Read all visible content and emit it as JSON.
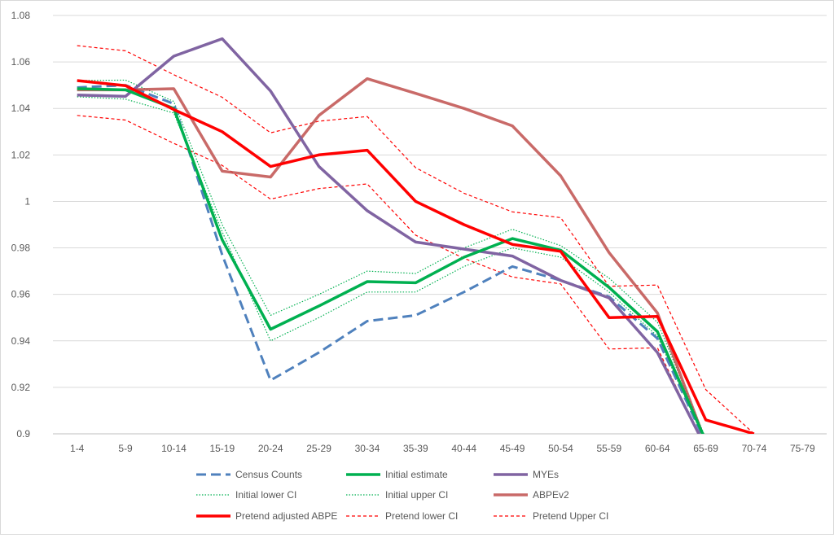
{
  "chart_data": {
    "type": "line",
    "categories": [
      "1-4",
      "5-9",
      "10-14",
      "15-19",
      "20-24",
      "25-29",
      "30-34",
      "35-39",
      "40-44",
      "45-49",
      "50-54",
      "55-59",
      "60-64",
      "65-69",
      "70-74",
      "75-79"
    ],
    "ylim": [
      0.9,
      1.08
    ],
    "yticks": [
      "0.9",
      "0.92",
      "0.94",
      "0.96",
      "0.98",
      "1",
      "1.02",
      "1.04",
      "1.06",
      "1.08"
    ],
    "grid": true,
    "legend_position": "bottom",
    "series": [
      {
        "name": "Census Counts",
        "color": "#4f81bd",
        "style": "dashed-thick",
        "values": [
          1.049,
          1.05,
          1.042,
          0.977,
          0.923,
          0.935,
          0.9485,
          0.951,
          0.961,
          0.972,
          0.966,
          0.959,
          0.941,
          0.896,
          null,
          null
        ]
      },
      {
        "name": "Initial estimate",
        "color": "#00b050",
        "style": "solid-thick",
        "values": [
          1.0485,
          1.048,
          1.04,
          0.9835,
          0.945,
          0.955,
          0.9655,
          0.965,
          0.976,
          0.984,
          0.979,
          0.963,
          0.944,
          0.897,
          null,
          null
        ]
      },
      {
        "name": "MYEs",
        "color": "#8064a2",
        "style": "solid-thick",
        "values": [
          1.0458,
          1.0452,
          1.0625,
          1.07,
          1.0475,
          1.015,
          0.996,
          0.9825,
          0.9795,
          0.9765,
          0.966,
          0.9585,
          0.935,
          0.894,
          null,
          null
        ]
      },
      {
        "name": "Initial lower CI",
        "color": "#00b050",
        "style": "dotted",
        "values": [
          1.045,
          1.044,
          1.038,
          0.987,
          0.94,
          0.95,
          0.961,
          0.961,
          0.972,
          0.98,
          0.976,
          0.961,
          0.942,
          0.896,
          null,
          null
        ]
      },
      {
        "name": "Initial upper CI",
        "color": "#00b050",
        "style": "dotted",
        "values": [
          1.052,
          1.0522,
          1.043,
          0.99,
          0.951,
          0.96,
          0.97,
          0.969,
          0.98,
          0.988,
          0.981,
          0.967,
          0.948,
          0.898,
          null,
          null
        ]
      },
      {
        "name": "ABPEv2",
        "color": "#c0504d",
        "style": "solid-thick-light",
        "values": [
          1.048,
          1.048,
          1.0485,
          1.013,
          1.0105,
          1.037,
          1.0528,
          1.0465,
          1.04,
          1.0325,
          1.011,
          0.978,
          0.952,
          0.896,
          null,
          null
        ]
      },
      {
        "name": "Pretend adjusted ABPE",
        "color": "#ff0000",
        "style": "solid-thick",
        "values": [
          1.052,
          1.0498,
          1.0395,
          1.03,
          1.015,
          1.02,
          1.022,
          1.0,
          0.99,
          0.9815,
          0.9785,
          0.95,
          0.9505,
          0.906,
          0.9,
          null
        ]
      },
      {
        "name": "Pretend lower CI",
        "color": "#ff0000",
        "style": "dashed-thin",
        "values": [
          1.037,
          1.035,
          1.025,
          1.0155,
          1.001,
          1.0055,
          1.0075,
          0.9855,
          0.9755,
          0.9675,
          0.9645,
          0.9365,
          0.937,
          0.8935,
          null,
          null
        ]
      },
      {
        "name": "Pretend Upper CI",
        "color": "#ff0000",
        "style": "dashed-thin",
        "values": [
          1.067,
          1.0648,
          1.0545,
          1.0448,
          1.0295,
          1.0345,
          1.0365,
          1.0145,
          1.0035,
          0.9955,
          0.993,
          0.9635,
          0.964,
          0.919,
          0.9,
          null
        ]
      }
    ]
  }
}
